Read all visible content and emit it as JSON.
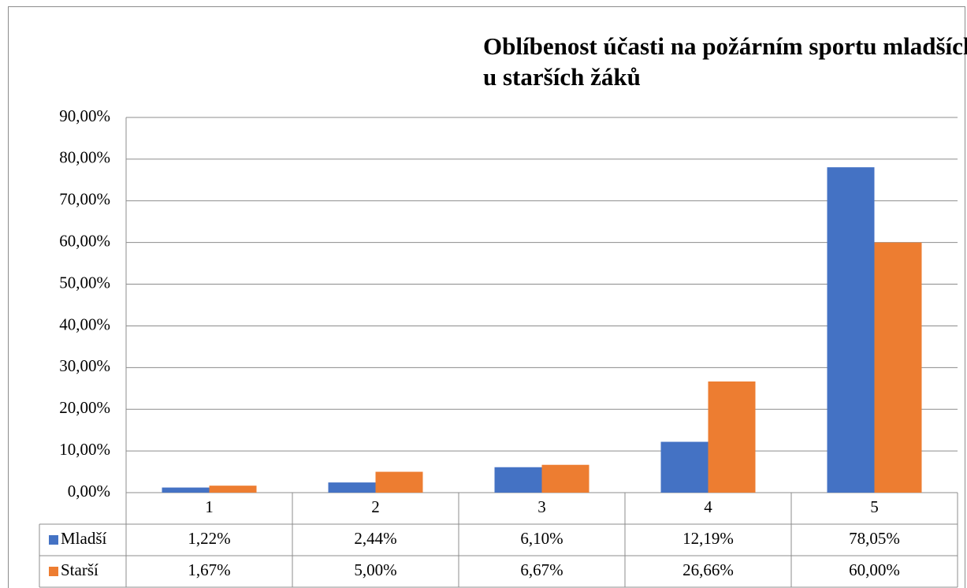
{
  "chart_data": {
    "type": "bar",
    "title": "Oblíbenost účasti na požárním sportu mladších žáků a u starších žáků",
    "categories": [
      "1",
      "2",
      "3",
      "4",
      "5"
    ],
    "series": [
      {
        "name": "Mladší",
        "color": "#4472c4",
        "values": [
          1.22,
          2.44,
          6.1,
          12.19,
          78.05
        ],
        "value_labels": [
          "1,22%",
          "2,44%",
          "6,10%",
          "12,19%",
          "78,05%"
        ]
      },
      {
        "name": "Starší",
        "color": "#ed7d31",
        "values": [
          1.67,
          5.0,
          6.67,
          26.66,
          60.0
        ],
        "value_labels": [
          "1,67%",
          "5,00%",
          "6,67%",
          "26,66%",
          "60,00%"
        ]
      }
    ],
    "ylim": [
      0,
      90
    ],
    "yticks": [
      {
        "value": 0,
        "label": "0,00%"
      },
      {
        "value": 10,
        "label": "10,00%"
      },
      {
        "value": 20,
        "label": "20,00%"
      },
      {
        "value": 30,
        "label": "30,00%"
      },
      {
        "value": 40,
        "label": "40,00%"
      },
      {
        "value": 50,
        "label": "50,00%"
      },
      {
        "value": 60,
        "label": "60,00%"
      },
      {
        "value": 70,
        "label": "70,00%"
      },
      {
        "value": 80,
        "label": "80,00%"
      },
      {
        "value": 90,
        "label": "90,00%"
      }
    ],
    "grid": true
  }
}
